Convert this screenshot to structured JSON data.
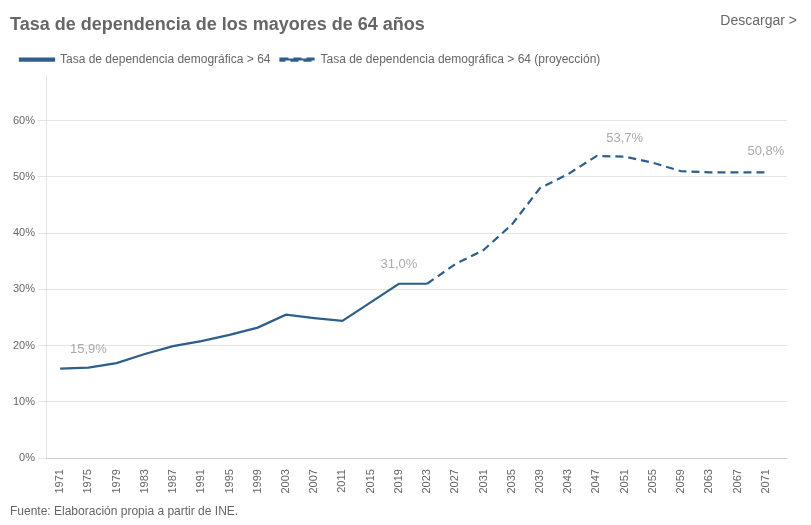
{
  "chart_data": {
    "type": "line",
    "title": "Tasa de dependencia de los mayores de 64 años",
    "subtitle": "Descargar >",
    "source": "Fuente: Elaboración propia a partir de INE.",
    "x": [
      1971,
      1975,
      1979,
      1983,
      1987,
      1991,
      1995,
      1999,
      2003,
      2007,
      2011,
      2015,
      2019,
      2023,
      2027,
      2031,
      2035,
      2039,
      2043,
      2047,
      2051,
      2055,
      2059,
      2063,
      2067,
      2071
    ],
    "series": [
      {
        "name": "Tasa de dependencia demográfica > 64",
        "color": "#2e5f8a",
        "line_style": "solid",
        "values": [
          0.159,
          0.161,
          0.169,
          0.185,
          0.199,
          0.208,
          0.219,
          0.232,
          0.255,
          0.249,
          0.244,
          0.277,
          0.31,
          0.31,
          null,
          null,
          null,
          null,
          null,
          null,
          null,
          null,
          null,
          null,
          null,
          null
        ]
      },
      {
        "name": "Tasa de dependencia demográfica > 64 (proyección)",
        "color": "#2e5f8a",
        "line_style": "dashed",
        "values": [
          null,
          null,
          null,
          null,
          null,
          null,
          null,
          null,
          null,
          null,
          null,
          null,
          null,
          0.31,
          0.345,
          0.37,
          0.415,
          0.48,
          0.505,
          0.537,
          0.536,
          0.525,
          0.51,
          0.508,
          0.508,
          0.508
        ]
      }
    ],
    "annotations": [
      {
        "text": "15,9%",
        "x": 1975,
        "y": 0.181,
        "color": "#aaaaaa"
      },
      {
        "text": "31,0%",
        "x": 2019,
        "y": 0.332,
        "color": "#aaaaaa"
      },
      {
        "text": "53,7%",
        "x": 2051,
        "y": 0.557,
        "color": "#aaaaaa"
      },
      {
        "text": "50,8%",
        "x": 2071,
        "y": 0.533,
        "color": "#aaaaaa"
      }
    ],
    "xlim": [
      1969,
      2074
    ],
    "xticks": [
      1971,
      1975,
      1979,
      1983,
      1987,
      1991,
      1995,
      1999,
      2003,
      2007,
      2011,
      2015,
      2019,
      2023,
      2027,
      2031,
      2035,
      2039,
      2043,
      2047,
      2051,
      2055,
      2059,
      2063,
      2067,
      2071
    ],
    "ylim": [
      0.0,
      0.68
    ],
    "yticks": [
      {
        "value": 0.0,
        "label": "0%"
      },
      {
        "value": 0.1,
        "label": "10%"
      },
      {
        "value": 0.2,
        "label": "20%"
      },
      {
        "value": 0.3,
        "label": "30%"
      },
      {
        "value": 0.4,
        "label": "40%"
      },
      {
        "value": 0.5,
        "label": "50%"
      },
      {
        "value": 0.6,
        "label": "60%"
      }
    ],
    "grid": "y",
    "legend": "top"
  }
}
